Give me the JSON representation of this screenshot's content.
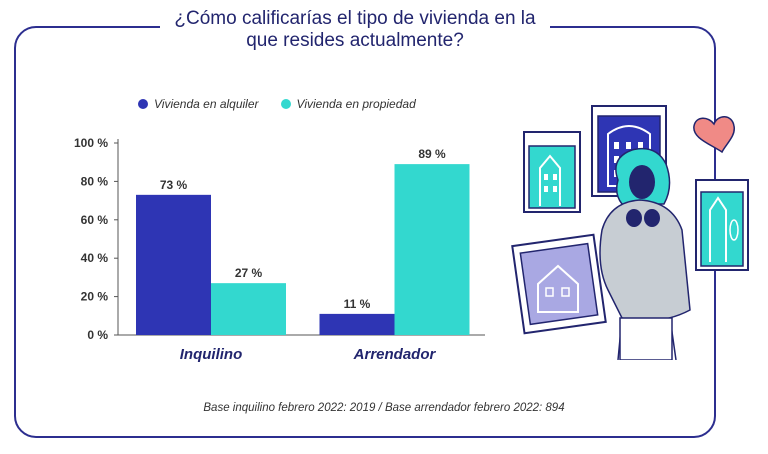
{
  "title": "¿Cómo calificarías el tipo de vivienda en la que resides actualmente?",
  "footnote": "Base inquilino febrero 2022: 2019 / Base arrendador febrero 2022: 894",
  "colors": {
    "alquiler": "#2e35b4",
    "propiedad": "#33d8cf",
    "frame": "#2c2e8f"
  },
  "chart_data": {
    "type": "bar",
    "categories": [
      "Inquilino",
      "Arrendador"
    ],
    "series": [
      {
        "name": "Vivienda en alquiler",
        "values": [
          73,
          11
        ],
        "color": "#2e35b4"
      },
      {
        "name": "Vivienda en propiedad",
        "values": [
          27,
          89
        ],
        "color": "#33d8cf"
      }
    ],
    "data_labels": [
      [
        "73 %",
        "11 %"
      ],
      [
        "27 %",
        "89 %"
      ]
    ],
    "yticks": [
      "0 %",
      "20 %",
      "40 %",
      "60 %",
      "80 %",
      "100 %"
    ],
    "ylim": [
      0,
      100
    ],
    "legend_position": "top-left",
    "grid": false
  }
}
